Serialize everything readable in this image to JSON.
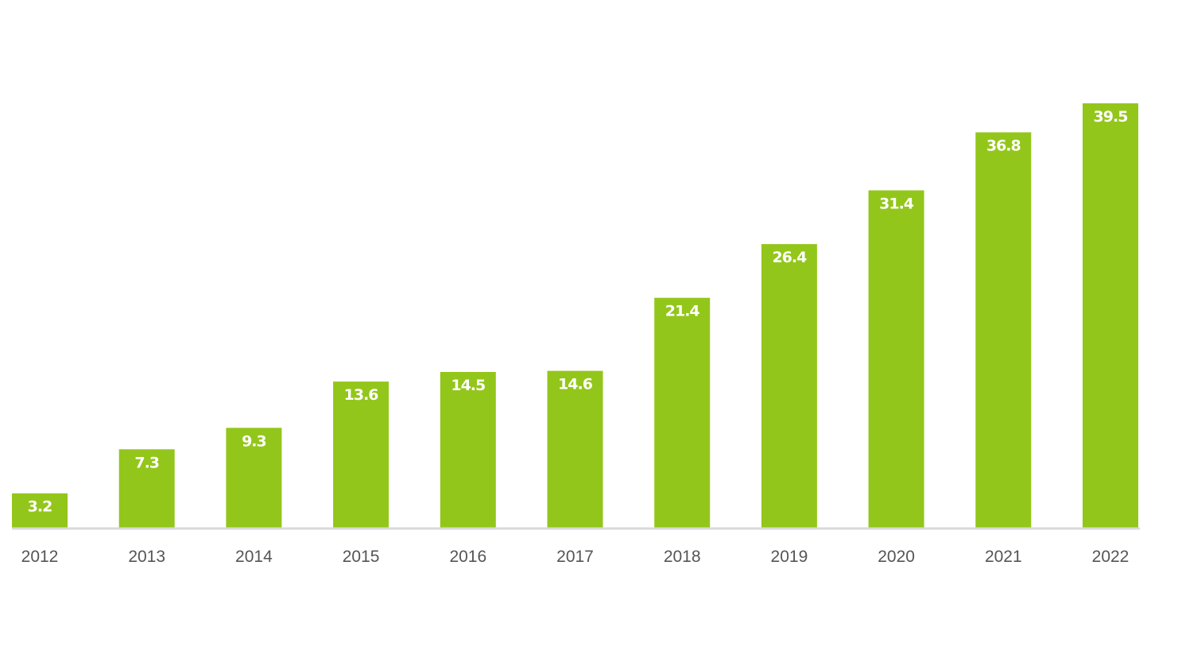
{
  "chart_data": {
    "type": "bar",
    "title": "",
    "xlabel": "",
    "ylabel": "",
    "categories": [
      "2012",
      "2013",
      "2014",
      "2015",
      "2016",
      "2017",
      "2018",
      "2019",
      "2020",
      "2021",
      "2022"
    ],
    "values": [
      3.2,
      7.3,
      9.3,
      13.6,
      14.5,
      14.6,
      21.4,
      26.4,
      31.4,
      36.8,
      39.5
    ],
    "value_labels": [
      "3.2",
      "7.3",
      "9.3",
      "13.6",
      "14.5",
      "14.6",
      "21.4",
      "26.4",
      "31.4",
      "36.8",
      "39.5"
    ],
    "ylim": [
      0,
      42
    ],
    "grid": false,
    "legend": "none",
    "bar_color": "#93c61a",
    "axis_color": "#d9d9d9",
    "tick_label_color": "#555555",
    "value_label_color": "#ffffff"
  }
}
